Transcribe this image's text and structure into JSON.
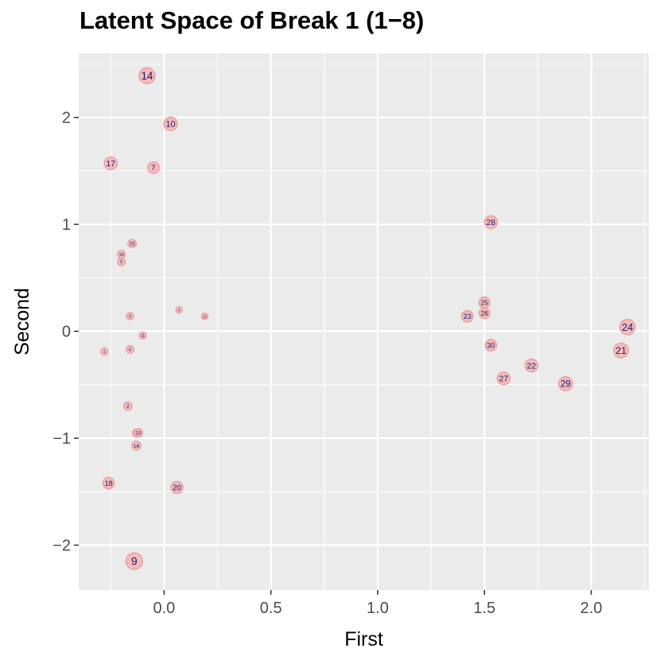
{
  "chart_data": {
    "type": "scatter",
    "title": "Latent Space of Break 1 (1−8)",
    "xlabel": "First",
    "ylabel": "Second",
    "xlim": [
      -0.4,
      2.27
    ],
    "ylim": [
      -2.42,
      2.6
    ],
    "x_ticks": [
      0.0,
      0.5,
      1.0,
      1.5,
      2.0
    ],
    "x_tick_labels": [
      "0.0",
      "0.5",
      "1.0",
      "1.5",
      "2.0"
    ],
    "y_ticks": [
      -2,
      -1,
      0,
      1,
      2
    ],
    "y_tick_labels": [
      "−2",
      "−1",
      "0",
      "1",
      "2"
    ],
    "grid": true,
    "panel_color": "#ebebeb",
    "grid_color": "#ffffff",
    "marker_fill": "#f4b6b6",
    "marker_stroke": "#e89a9a",
    "label_color": "#1a1a6e",
    "points": [
      {
        "label": "1",
        "x": -0.28,
        "y": -0.19,
        "size": 0.25
      },
      {
        "label": "2",
        "x": -0.17,
        "y": -0.7,
        "size": 0.35
      },
      {
        "label": "3",
        "x": -0.16,
        "y": 0.14,
        "size": 0.25
      },
      {
        "label": "4",
        "x": -0.13,
        "y": -0.95,
        "size": 0.3
      },
      {
        "label": "5",
        "x": -0.2,
        "y": 0.65,
        "size": 0.3
      },
      {
        "label": "6",
        "x": -0.16,
        "y": -0.17,
        "size": 0.3
      },
      {
        "label": "7",
        "x": -0.05,
        "y": 1.53,
        "size": 0.6
      },
      {
        "label": "8",
        "x": 0.07,
        "y": 0.2,
        "size": 0.2
      },
      {
        "label": "9",
        "x": -0.14,
        "y": -2.15,
        "size": 1.0
      },
      {
        "label": "10",
        "x": 0.03,
        "y": 1.94,
        "size": 0.75
      },
      {
        "label": "11",
        "x": -0.1,
        "y": -0.04,
        "size": 0.25
      },
      {
        "label": "12",
        "x": 0.19,
        "y": 0.14,
        "size": 0.2
      },
      {
        "label": "13",
        "x": -0.12,
        "y": -0.95,
        "size": 0.35
      },
      {
        "label": "14",
        "x": -0.08,
        "y": 2.39,
        "size": 0.95
      },
      {
        "label": "15",
        "x": -0.15,
        "y": 0.82,
        "size": 0.35
      },
      {
        "label": "16",
        "x": -0.13,
        "y": -1.07,
        "size": 0.4
      },
      {
        "label": "17",
        "x": -0.25,
        "y": 1.57,
        "size": 0.7
      },
      {
        "label": "18",
        "x": -0.26,
        "y": -1.42,
        "size": 0.6
      },
      {
        "label": "19",
        "x": -0.2,
        "y": 0.72,
        "size": 0.3
      },
      {
        "label": "20",
        "x": 0.06,
        "y": -1.46,
        "size": 0.65
      },
      {
        "label": "21",
        "x": 2.14,
        "y": -0.18,
        "size": 0.85
      },
      {
        "label": "22",
        "x": 1.72,
        "y": -0.32,
        "size": 0.7
      },
      {
        "label": "23",
        "x": 1.42,
        "y": 0.14,
        "size": 0.6
      },
      {
        "label": "24",
        "x": 2.17,
        "y": 0.04,
        "size": 0.9
      },
      {
        "label": "25",
        "x": 1.5,
        "y": 0.27,
        "size": 0.55
      },
      {
        "label": "26",
        "x": 1.5,
        "y": 0.17,
        "size": 0.55
      },
      {
        "label": "27",
        "x": 1.59,
        "y": -0.44,
        "size": 0.7
      },
      {
        "label": "28",
        "x": 1.53,
        "y": 1.02,
        "size": 0.7
      },
      {
        "label": "29",
        "x": 1.88,
        "y": -0.49,
        "size": 0.8
      },
      {
        "label": "30",
        "x": 1.53,
        "y": -0.13,
        "size": 0.6
      }
    ]
  }
}
